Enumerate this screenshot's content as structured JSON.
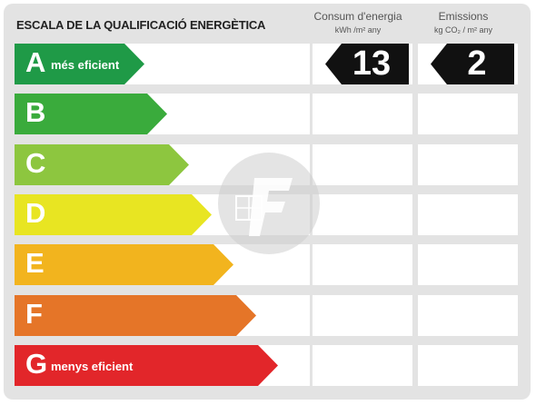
{
  "title": "ESCALA DE LA QUALIFICACIÓ ENERGÈTICA",
  "consum": {
    "label": "Consum d'energia",
    "unit": "kWh /m² any",
    "value": "13",
    "rating": "A"
  },
  "emissions": {
    "label": "Emissions",
    "unit": "kg CO₂ / m² any",
    "value": "2",
    "rating": "A"
  },
  "ratings": [
    {
      "letter": "A",
      "sub": "més eficient",
      "color": "#1f9a47"
    },
    {
      "letter": "B",
      "sub": "",
      "color": "#3aab3c"
    },
    {
      "letter": "C",
      "sub": "",
      "color": "#8dc63f"
    },
    {
      "letter": "D",
      "sub": "",
      "color": "#e8e522"
    },
    {
      "letter": "E",
      "sub": "",
      "color": "#f2b41e"
    },
    {
      "letter": "F",
      "sub": "",
      "color": "#e57528"
    },
    {
      "letter": "G",
      "sub": "menys eficient",
      "color": "#e2262a"
    }
  ],
  "watermark_icon": "house-logo-icon"
}
